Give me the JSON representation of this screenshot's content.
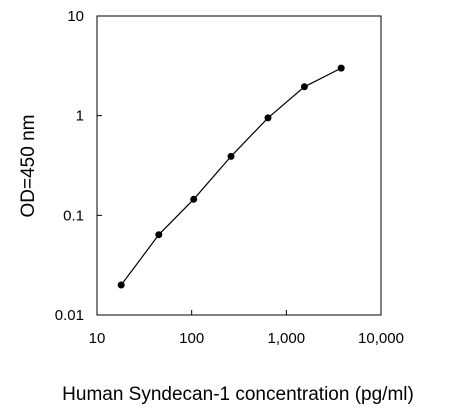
{
  "chart_data": {
    "type": "line",
    "title": "",
    "xlabel": "Human Syndecan-1 concentration (pg/ml)",
    "ylabel": "OD=450 nm",
    "x_scale": "log",
    "y_scale": "log",
    "xlim": [
      10,
      10000
    ],
    "ylim": [
      0.01,
      10
    ],
    "x_ticks": [
      10,
      100,
      1000,
      10000
    ],
    "x_tick_labels": [
      "10",
      "100",
      "1,000",
      "10,000"
    ],
    "y_ticks": [
      0.01,
      0.1,
      1,
      10
    ],
    "y_tick_labels": [
      "0.01",
      "0.1",
      "1",
      "10"
    ],
    "grid": false,
    "legend": "none",
    "series": [
      {
        "x": [
          18,
          45,
          105,
          260,
          640,
          1550,
          3800
        ],
        "y": [
          0.02,
          0.064,
          0.145,
          0.39,
          0.95,
          1.95,
          3.0
        ],
        "color": "#000000",
        "marker": "circle"
      }
    ]
  }
}
